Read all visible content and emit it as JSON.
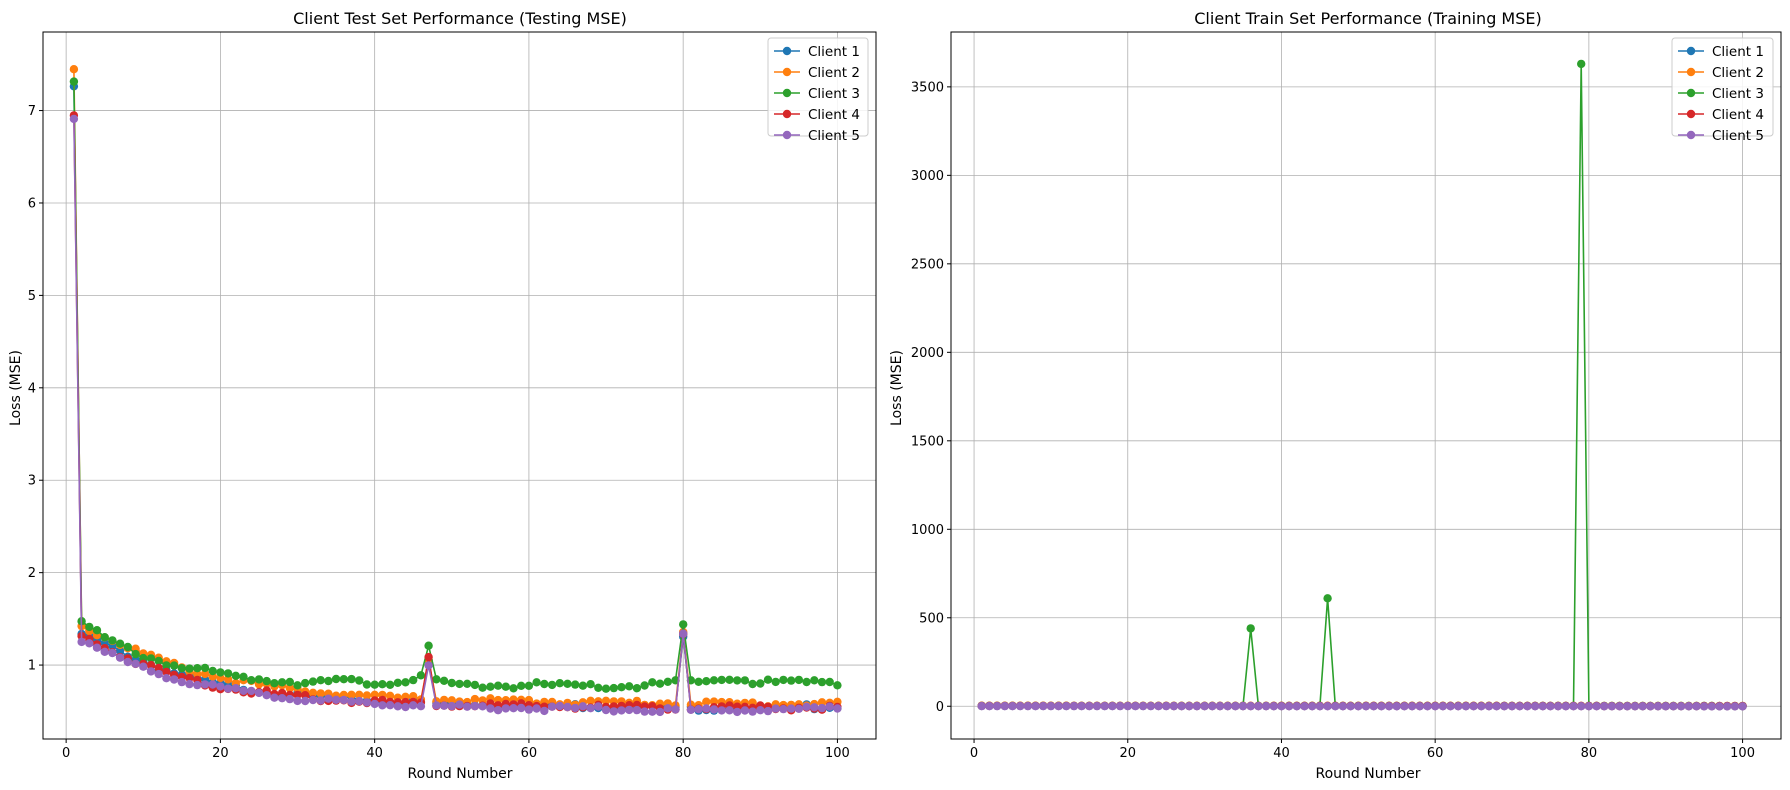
{
  "chart_data": [
    {
      "type": "line",
      "title": "Client Test Set Performance (Testing MSE)",
      "xlabel": "Round Number",
      "ylabel": "Loss (MSE)",
      "xlim": [
        -3,
        105
      ],
      "ylim": [
        0.2,
        7.85
      ],
      "xticks": [
        0,
        20,
        40,
        60,
        80,
        100
      ],
      "yticks": [
        1,
        2,
        3,
        4,
        5,
        6,
        7
      ],
      "grid": true,
      "legend": "top-right",
      "marker": "circle",
      "series": [
        {
          "name": "Client 1",
          "color": "#1f77b4",
          "anchors": [
            [
              1,
              7.25
            ],
            [
              2,
              1.35
            ],
            [
              3,
              1.32
            ],
            [
              5,
              1.24
            ],
            [
              10,
              1.05
            ],
            [
              15,
              0.9
            ],
            [
              20,
              0.8
            ],
            [
              25,
              0.74
            ],
            [
              30,
              0.69
            ],
            [
              35,
              0.66
            ],
            [
              40,
              0.63
            ],
            [
              46,
              0.61
            ],
            [
              47,
              1.05
            ],
            [
              48,
              0.6
            ],
            [
              60,
              0.58
            ],
            [
              70,
              0.57
            ],
            [
              79,
              0.56
            ],
            [
              80,
              1.3
            ],
            [
              81,
              0.55
            ],
            [
              90,
              0.55
            ],
            [
              100,
              0.57
            ]
          ],
          "noise": 0.015
        },
        {
          "name": "Client 2",
          "color": "#ff7f0e",
          "anchors": [
            [
              1,
              7.47
            ],
            [
              2,
              1.45
            ],
            [
              3,
              1.4
            ],
            [
              5,
              1.32
            ],
            [
              10,
              1.14
            ],
            [
              15,
              0.98
            ],
            [
              20,
              0.88
            ],
            [
              25,
              0.8
            ],
            [
              30,
              0.75
            ],
            [
              35,
              0.71
            ],
            [
              40,
              0.67
            ],
            [
              46,
              0.65
            ],
            [
              47,
              1.1
            ],
            [
              48,
              0.64
            ],
            [
              60,
              0.62
            ],
            [
              70,
              0.61
            ],
            [
              79,
              0.6
            ],
            [
              80,
              1.4
            ],
            [
              81,
              0.6
            ],
            [
              90,
              0.59
            ],
            [
              100,
              0.6
            ]
          ],
          "noise": 0.015
        },
        {
          "name": "Client 3",
          "color": "#2ca02c",
          "anchors": [
            [
              1,
              7.37
            ],
            [
              2,
              1.48
            ],
            [
              3,
              1.42
            ],
            [
              5,
              1.3
            ],
            [
              10,
              1.12
            ],
            [
              15,
              1.0
            ],
            [
              20,
              0.92
            ],
            [
              25,
              0.87
            ],
            [
              30,
              0.84
            ],
            [
              35,
              0.84
            ],
            [
              40,
              0.83
            ],
            [
              45,
              0.86
            ],
            [
              46,
              0.9
            ],
            [
              47,
              1.19
            ],
            [
              48,
              0.84
            ],
            [
              50,
              0.8
            ],
            [
              60,
              0.8
            ],
            [
              70,
              0.78
            ],
            [
              79,
              0.82
            ],
            [
              80,
              1.45
            ],
            [
              81,
              0.82
            ],
            [
              86,
              0.88
            ],
            [
              90,
              0.83
            ],
            [
              100,
              0.84
            ]
          ],
          "noise": 0.02
        },
        {
          "name": "Client 4",
          "color": "#d62728",
          "anchors": [
            [
              1,
              6.95
            ],
            [
              2,
              1.32
            ],
            [
              3,
              1.3
            ],
            [
              5,
              1.2
            ],
            [
              10,
              1.02
            ],
            [
              15,
              0.88
            ],
            [
              20,
              0.78
            ],
            [
              25,
              0.72
            ],
            [
              30,
              0.67
            ],
            [
              35,
              0.64
            ],
            [
              40,
              0.62
            ],
            [
              46,
              0.6
            ],
            [
              47,
              1.12
            ],
            [
              48,
              0.59
            ],
            [
              60,
              0.57
            ],
            [
              70,
              0.56
            ],
            [
              79,
              0.55
            ],
            [
              80,
              1.38
            ],
            [
              81,
              0.55
            ],
            [
              90,
              0.55
            ],
            [
              100,
              0.56
            ]
          ],
          "noise": 0.015
        },
        {
          "name": "Client 5",
          "color": "#9467bd",
          "anchors": [
            [
              1,
              6.93
            ],
            [
              2,
              1.28
            ],
            [
              3,
              1.25
            ],
            [
              5,
              1.15
            ],
            [
              10,
              0.98
            ],
            [
              15,
              0.85
            ],
            [
              20,
              0.76
            ],
            [
              25,
              0.7
            ],
            [
              30,
              0.65
            ],
            [
              35,
              0.62
            ],
            [
              40,
              0.6
            ],
            [
              46,
              0.58
            ],
            [
              47,
              1.02
            ],
            [
              48,
              0.57
            ],
            [
              60,
              0.55
            ],
            [
              70,
              0.54
            ],
            [
              79,
              0.53
            ],
            [
              80,
              1.33
            ],
            [
              81,
              0.53
            ],
            [
              90,
              0.53
            ],
            [
              100,
              0.55
            ]
          ],
          "noise": 0.015
        }
      ]
    },
    {
      "type": "line",
      "title": "Client Train Set Performance (Training MSE)",
      "xlabel": "Round Number",
      "ylabel": "Loss (MSE)",
      "xlim": [
        -3,
        105
      ],
      "ylim": [
        -185,
        3810
      ],
      "xticks": [
        0,
        20,
        40,
        60,
        80,
        100
      ],
      "yticks": [
        0,
        500,
        1000,
        1500,
        2000,
        2500,
        3000,
        3500
      ],
      "grid": true,
      "legend": "top-right",
      "marker": "circle",
      "series": [
        {
          "name": "Client 1",
          "color": "#1f77b4",
          "anchors": [
            [
              1,
              2
            ],
            [
              100,
              1
            ]
          ],
          "noise": 0
        },
        {
          "name": "Client 2",
          "color": "#ff7f0e",
          "anchors": [
            [
              1,
              3
            ],
            [
              100,
              2
            ]
          ],
          "noise": 0
        },
        {
          "name": "Client 3",
          "color": "#2ca02c",
          "anchors": [
            [
              1,
              2
            ],
            [
              35,
              2
            ],
            [
              36,
              440
            ],
            [
              37,
              2
            ],
            [
              45,
              2
            ],
            [
              46,
              610
            ],
            [
              47,
              2
            ],
            [
              78,
              2
            ],
            [
              79,
              3630
            ],
            [
              80,
              2
            ],
            [
              100,
              1
            ]
          ],
          "noise": 0
        },
        {
          "name": "Client 4",
          "color": "#d62728",
          "anchors": [
            [
              1,
              2
            ],
            [
              100,
              1
            ]
          ],
          "noise": 0
        },
        {
          "name": "Client 5",
          "color": "#9467bd",
          "anchors": [
            [
              1,
              1
            ],
            [
              100,
              0
            ]
          ],
          "noise": 0
        }
      ]
    }
  ]
}
